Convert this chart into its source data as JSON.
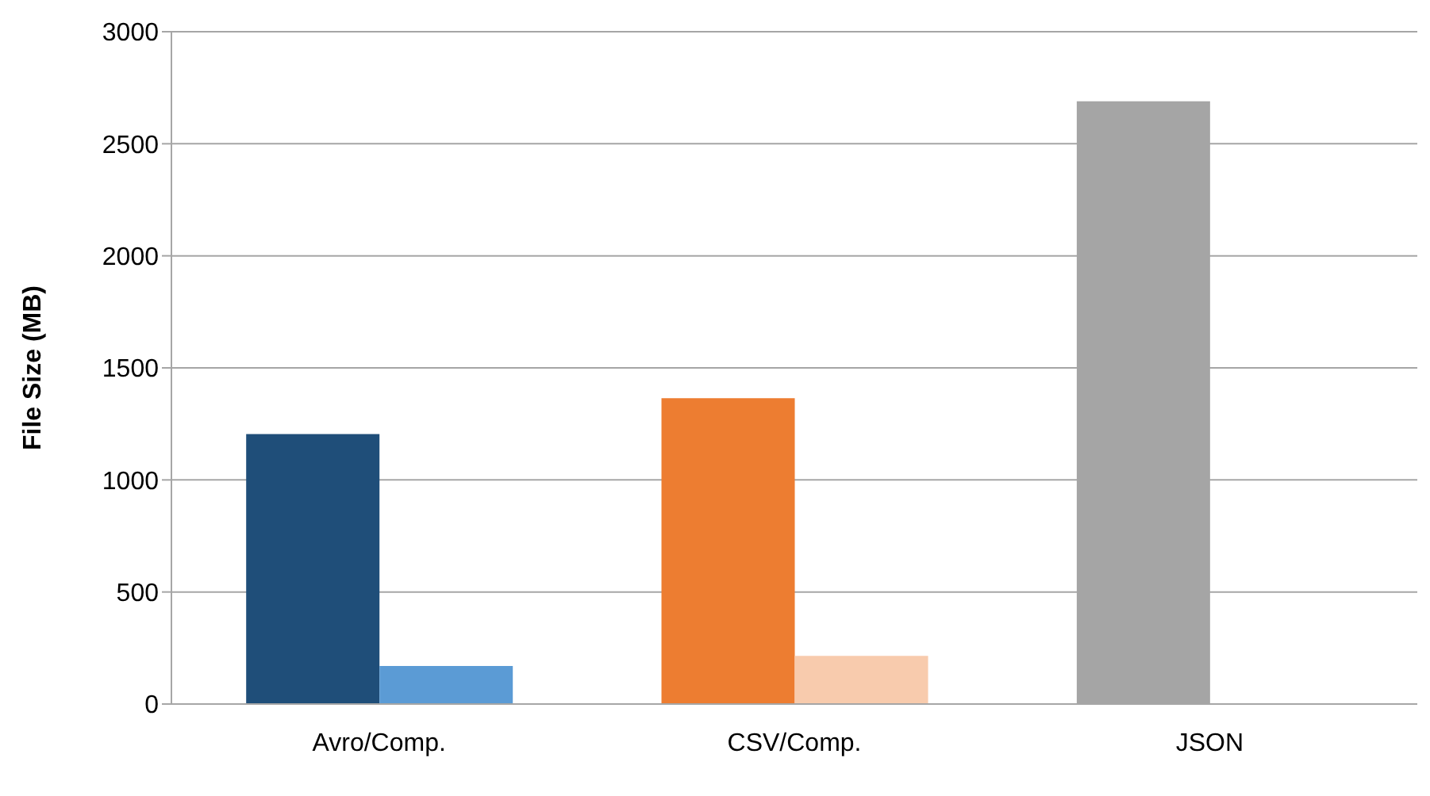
{
  "chart_data": {
    "type": "bar",
    "ylabel": "File Size (MB)",
    "categories": [
      "Avro/Comp.",
      "CSV/Comp.",
      "JSON"
    ],
    "series": [
      {
        "colors": [
          "#1f4e79",
          "#ed7d31",
          "#a5a5a5"
        ],
        "values": [
          1205,
          1365,
          2690
        ]
      },
      {
        "colors": [
          "#5b9bd5",
          "#f8cbad",
          null
        ],
        "values": [
          170,
          215,
          null
        ]
      }
    ],
    "ylim": [
      0,
      3000
    ],
    "yticks": [
      0,
      500,
      1000,
      1500,
      2000,
      2500,
      3000
    ],
    "grid": "y",
    "legend": false
  }
}
